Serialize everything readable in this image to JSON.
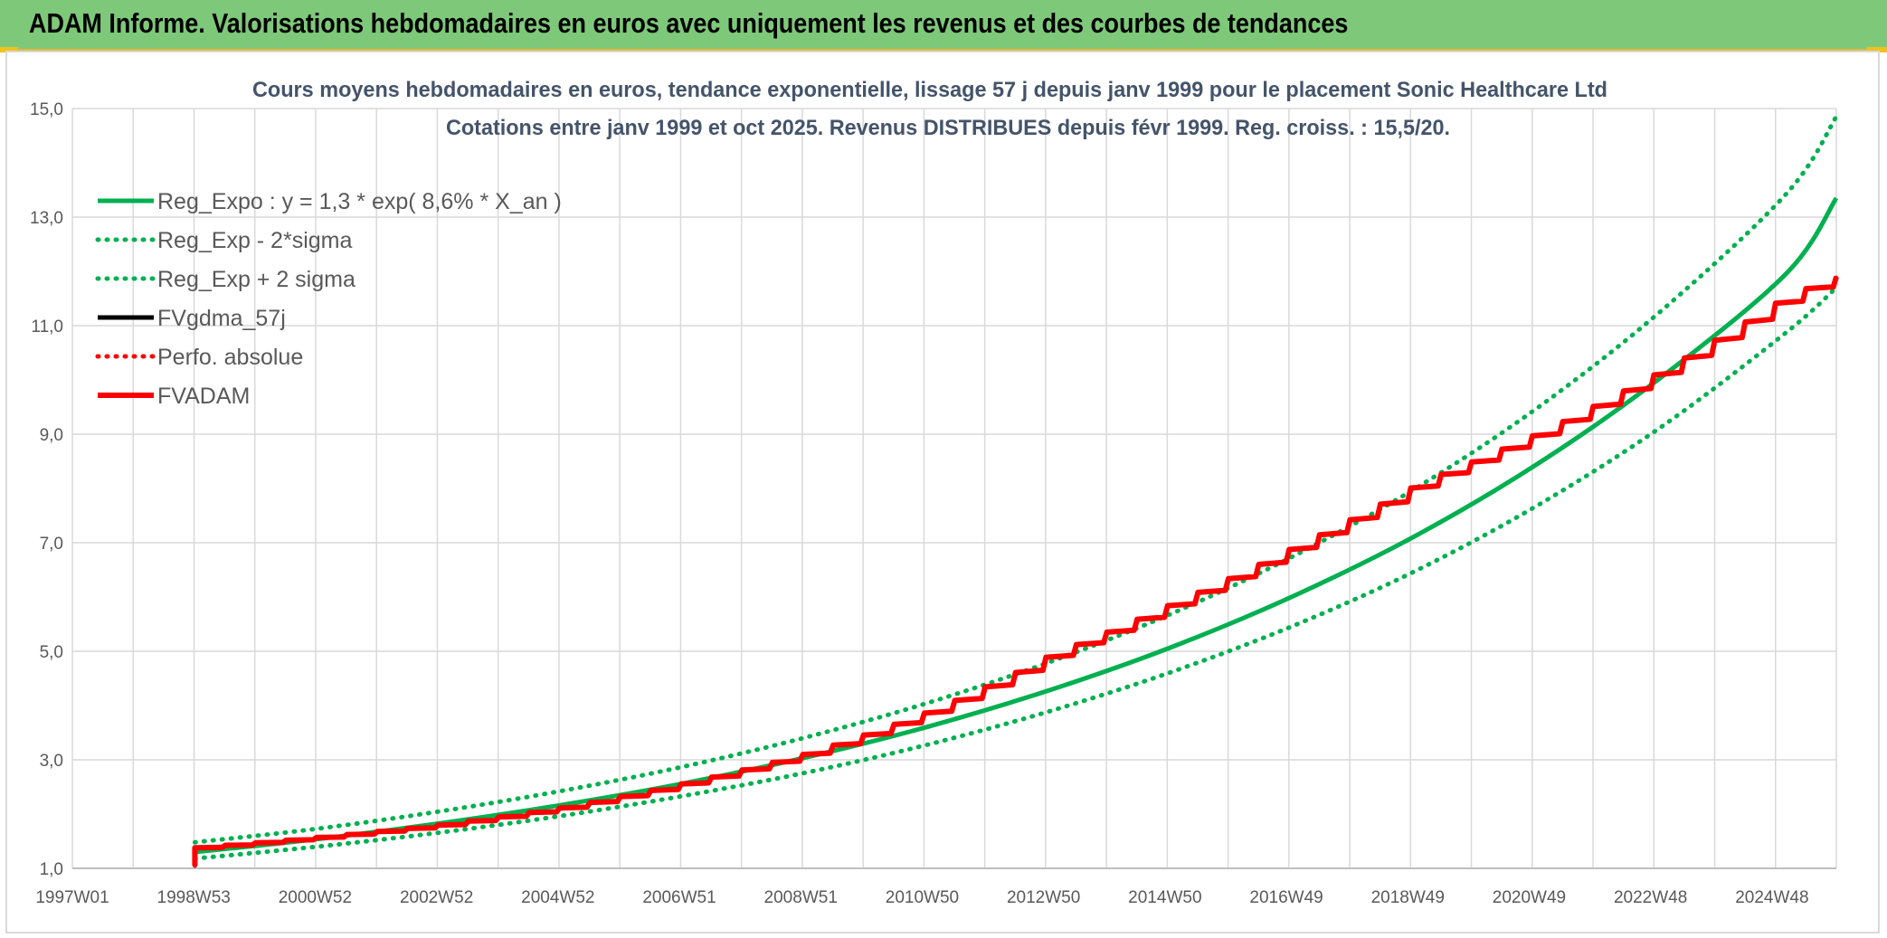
{
  "banner": {
    "title": "ADAM Informe. Valorisations hebdomadaires en euros avec uniquement les revenus et des courbes de tendances"
  },
  "colors": {
    "banner_bg": "#7ec87a",
    "accent_corner": "#f2c21a",
    "trend_green": "#00b050",
    "fv_black": "#000000",
    "adam_red": "#ff0000",
    "title_text": "#44546a",
    "grid": "#d9d9d9",
    "axis_text": "#595959"
  },
  "chart_data": {
    "type": "line",
    "title": "Cours moyens hebdomadaires en euros, tendance exponentielle, lissage 57 j depuis janv 1999 pour le placement Sonic Healthcare Ltd",
    "subtitle": "Cotations entre janv 1999 et oct 2025. Revenus DISTRIBUES depuis févr 1999. Reg. croiss. : 15,5/20.",
    "xlabel": "",
    "ylabel": "",
    "x_tick_labels": [
      "1997W01",
      "1998W53",
      "2000W52",
      "2002W52",
      "2004W52",
      "2006W51",
      "2008W51",
      "2010W50",
      "2012W50",
      "2014W50",
      "2016W49",
      "2018W49",
      "2020W49",
      "2022W48",
      "2024W48"
    ],
    "x_range_years": [
      1997.0,
      2025.8
    ],
    "ylim": [
      1.0,
      15.0
    ],
    "y_tick_labels": [
      "1,0",
      "3,0",
      "5,0",
      "7,0",
      "9,0",
      "11,0",
      "13,0",
      "15,0"
    ],
    "y_ticks": [
      1,
      3,
      5,
      7,
      9,
      11,
      13,
      15
    ],
    "grid": true,
    "legend_position": "top-left",
    "series": [
      {
        "name": "Reg_Expo : y = 1,3 * exp( 8,6% *  X_an )",
        "color": "#00b050",
        "style": "solid",
        "x": [
          1999.0,
          2001.0,
          2003.0,
          2005.0,
          2007.0,
          2009.0,
          2011.0,
          2013.0,
          2015.0,
          2017.0,
          2019.0,
          2021.0,
          2023.0,
          2025.0,
          2025.8
        ],
        "y": [
          1.3,
          1.54,
          1.83,
          2.17,
          2.57,
          3.05,
          3.62,
          4.3,
          5.1,
          6.05,
          7.17,
          8.51,
          10.1,
          11.98,
          13.35
        ]
      },
      {
        "name": "Reg_Exp - 2*sigma",
        "color": "#00b050",
        "style": "dotted",
        "x": [
          1999.0,
          2001.0,
          2003.0,
          2005.0,
          2007.0,
          2009.0,
          2011.0,
          2013.0,
          2015.0,
          2017.0,
          2019.0,
          2021.0,
          2023.0,
          2025.0,
          2025.8
        ],
        "y": [
          1.18,
          1.4,
          1.66,
          1.97,
          2.34,
          2.77,
          3.29,
          3.91,
          4.64,
          5.5,
          6.52,
          7.74,
          9.18,
          10.89,
          11.7
        ]
      },
      {
        "name": "Reg_Exp + 2 sigma",
        "color": "#00b050",
        "style": "dotted",
        "x": [
          1999.0,
          2001.0,
          2003.0,
          2005.0,
          2007.0,
          2009.0,
          2011.0,
          2013.0,
          2015.0,
          2017.0,
          2019.0,
          2021.0,
          2023.0,
          2025.0,
          2025.8
        ],
        "y": [
          1.48,
          1.73,
          2.05,
          2.43,
          2.88,
          3.42,
          4.06,
          4.82,
          5.72,
          6.79,
          8.05,
          9.55,
          11.33,
          13.45,
          14.85
        ]
      },
      {
        "name": "FVgdma_57j",
        "color": "#000000",
        "style": "solid",
        "x": [
          1999.0,
          2001.0,
          2003.0,
          2005.0,
          2007.0,
          2009.0,
          2011.0,
          2013.0,
          2015.0,
          2017.0,
          2019.0,
          2021.0,
          2023.0,
          2025.0,
          2025.8
        ],
        "y": [
          1.38,
          1.57,
          1.8,
          2.12,
          2.57,
          3.12,
          3.9,
          4.95,
          5.9,
          6.95,
          8.1,
          9.05,
          10.2,
          11.55,
          11.9
        ]
      },
      {
        "name": "Perfo. absolue",
        "color": "#ff0000",
        "style": "dotted",
        "x": [
          1999.0,
          2001.0,
          2003.0,
          2005.0,
          2007.0,
          2009.0,
          2011.0,
          2013.0,
          2015.0,
          2017.0,
          2019.0,
          2021.0,
          2023.0,
          2025.0,
          2025.8
        ],
        "y": [
          1.38,
          1.57,
          1.8,
          2.12,
          2.57,
          3.12,
          3.9,
          4.95,
          5.9,
          6.95,
          8.1,
          9.05,
          10.2,
          11.55,
          11.9
        ]
      },
      {
        "name": "FVADAM",
        "color": "#ff0000",
        "style": "solid-thick",
        "x": [
          1999.0,
          2001.0,
          2003.0,
          2005.0,
          2007.0,
          2009.0,
          2011.0,
          2013.0,
          2015.0,
          2017.0,
          2019.0,
          2021.0,
          2023.0,
          2025.0,
          2025.8
        ],
        "y": [
          1.38,
          1.57,
          1.8,
          2.12,
          2.57,
          3.12,
          3.9,
          4.95,
          5.9,
          6.95,
          8.1,
          9.05,
          10.2,
          11.55,
          11.9
        ]
      }
    ]
  }
}
